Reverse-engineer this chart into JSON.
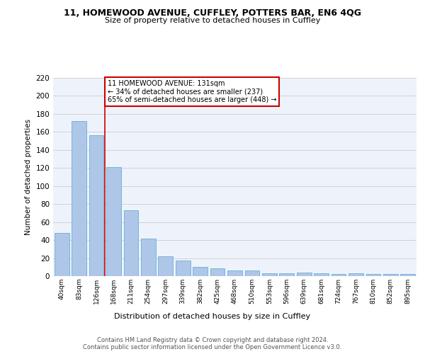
{
  "title1": "11, HOMEWOOD AVENUE, CUFFLEY, POTTERS BAR, EN6 4QG",
  "title2": "Size of property relative to detached houses in Cuffley",
  "xlabel": "Distribution of detached houses by size in Cuffley",
  "ylabel": "Number of detached properties",
  "categories": [
    "40sqm",
    "83sqm",
    "126sqm",
    "168sqm",
    "211sqm",
    "254sqm",
    "297sqm",
    "339sqm",
    "382sqm",
    "425sqm",
    "468sqm",
    "510sqm",
    "553sqm",
    "596sqm",
    "639sqm",
    "681sqm",
    "724sqm",
    "767sqm",
    "810sqm",
    "852sqm",
    "895sqm"
  ],
  "bar_values": [
    48,
    172,
    156,
    121,
    73,
    42,
    22,
    17,
    10,
    9,
    6,
    6,
    3,
    3,
    4,
    3,
    2,
    3,
    2,
    2,
    2
  ],
  "bar_color": "#aec6e8",
  "bar_edge_color": "#6aaed6",
  "background_color": "#eef3fb",
  "grid_color": "#cccccc",
  "vline_color": "#cc0000",
  "vline_pos": 2.5,
  "annotation_text": "11 HOMEWOOD AVENUE: 131sqm\n← 34% of detached houses are smaller (237)\n65% of semi-detached houses are larger (448) →",
  "annotation_box_color": "white",
  "annotation_box_edge": "#cc0000",
  "ylim": [
    0,
    220
  ],
  "yticks": [
    0,
    20,
    40,
    60,
    80,
    100,
    120,
    140,
    160,
    180,
    200,
    220
  ],
  "footer": "Contains HM Land Registry data © Crown copyright and database right 2024.\nContains public sector information licensed under the Open Government Licence v3.0."
}
